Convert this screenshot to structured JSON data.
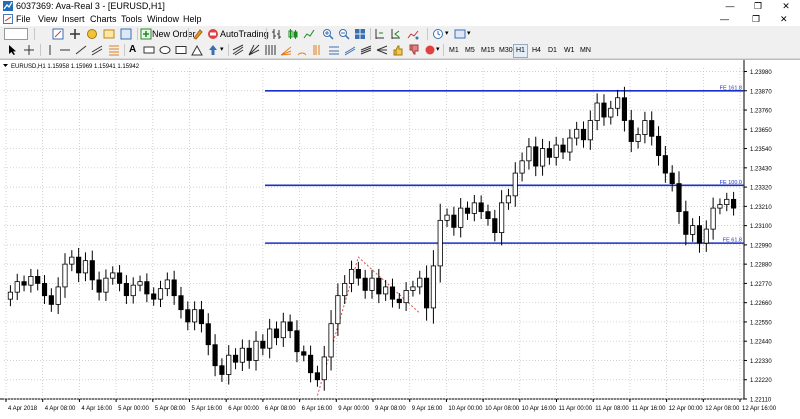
{
  "window": {
    "title": "6037369: Ava-Real 3 - [EURUSD,H1]"
  },
  "menu": [
    "File",
    "View",
    "Insert",
    "Charts",
    "Tools",
    "Window",
    "Help"
  ],
  "toolbar": {
    "new_order": "New Order",
    "autotrading": "AutoTrading"
  },
  "timeframes": [
    "M1",
    "M5",
    "M15",
    "M30",
    "H1",
    "H4",
    "D1",
    "W1",
    "MN"
  ],
  "active_timeframe": "H1",
  "colors": {
    "fibo_line": "#1a2fc8",
    "fibo_text": "#1a2fc8",
    "candle": "#000000",
    "zigzag": "#e05050",
    "grid": "#c0c0c0"
  },
  "chart_data": {
    "type": "candlestick",
    "header": "EURUSD,H1  1.15958 1.15969 1.15941 1.15942",
    "ylim": [
      1.2211,
      1.24
    ],
    "yticks": [
      "1.23980",
      "1.23870",
      "1.23760",
      "1.23650",
      "1.23540",
      "1.23430",
      "1.23320",
      "1.23210",
      "1.23100",
      "1.22990",
      "1.22880",
      "1.22770",
      "1.22660",
      "1.22550",
      "1.22440",
      "1.22330",
      "1.22220",
      "1.22110"
    ],
    "xticks": [
      "4 Apr 2018",
      "4 Apr 08:00",
      "4 Apr 16:00",
      "5 Apr 00:00",
      "5 Apr 08:00",
      "5 Apr 16:00",
      "6 Apr 00:00",
      "6 Apr 08:00",
      "6 Apr 16:00",
      "9 Apr 00:00",
      "9 Apr 08:00",
      "9 Apr 16:00",
      "10 Apr 00:00",
      "10 Apr 08:00",
      "10 Apr 16:00",
      "11 Apr 00:00",
      "11 Apr 08:00",
      "11 Apr 16:00",
      "12 Apr 00:00",
      "12 Apr 08:00",
      "12 Apr 16:00"
    ],
    "fibo_levels": [
      {
        "label": "FE 161.8",
        "price": 1.2387
      },
      {
        "label": "FE 100.0",
        "price": 1.2333
      },
      {
        "label": "FE 61.8",
        "price": 1.23
      }
    ],
    "closes": [
      1.2272,
      1.2278,
      1.2276,
      1.2281,
      1.2277,
      1.227,
      1.2265,
      1.2275,
      1.2288,
      1.2292,
      1.2283,
      1.229,
      1.2279,
      1.2272,
      1.228,
      1.2283,
      1.2277,
      1.227,
      1.2276,
      1.2278,
      1.2271,
      1.2268,
      1.2274,
      1.2279,
      1.227,
      1.2262,
      1.2255,
      1.2262,
      1.2254,
      1.2242,
      1.223,
      1.2225,
      1.2236,
      1.2232,
      1.224,
      1.2233,
      1.2244,
      1.224,
      1.2251,
      1.2246,
      1.2255,
      1.225,
      1.2238,
      1.2236,
      1.2226,
      1.2222,
      1.2235,
      1.2254,
      1.227,
      1.2277,
      1.2285,
      1.228,
      1.2273,
      1.228,
      1.2271,
      1.2275,
      1.2268,
      1.2266,
      1.2273,
      1.2275,
      1.228,
      1.2263,
      1.2287,
      1.2313,
      1.2316,
      1.2309,
      1.232,
      1.2317,
      1.2323,
      1.2318,
      1.2314,
      1.2306,
      1.2323,
      1.2327,
      1.234,
      1.2347,
      1.2355,
      1.2344,
      1.2354,
      1.2349,
      1.2356,
      1.2352,
      1.236,
      1.2365,
      1.2359,
      1.237,
      1.238,
      1.2372,
      1.2377,
      1.2383,
      1.237,
      1.2358,
      1.2362,
      1.237,
      1.2361,
      1.235,
      1.234,
      1.2334,
      1.2318,
      1.2305,
      1.231,
      1.23,
      1.2308,
      1.232,
      1.2322,
      1.2325,
      1.232
    ]
  }
}
